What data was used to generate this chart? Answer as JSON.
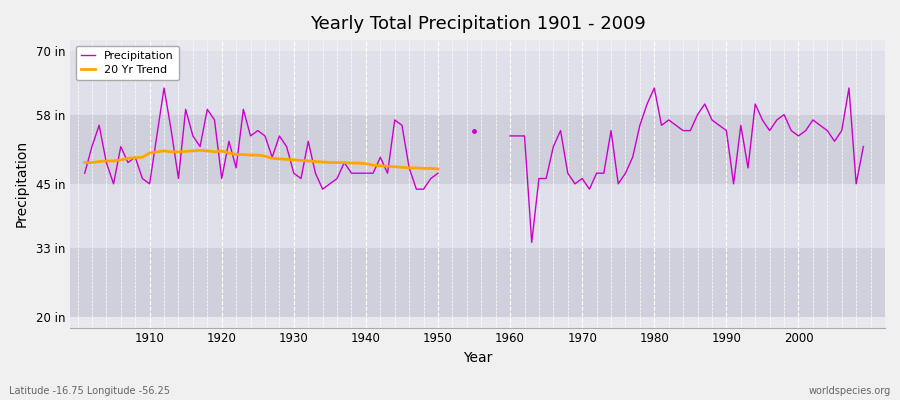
{
  "title": "Yearly Total Precipitation 1901 - 2009",
  "xlabel": "Year",
  "ylabel": "Precipitation",
  "bottom_left_label": "Latitude -16.75 Longitude -56.25",
  "bottom_right_label": "worldspecies.org",
  "legend_entries": [
    "Precipitation",
    "20 Yr Trend"
  ],
  "precip_color": "#cc00cc",
  "trend_color": "#ffa500",
  "background_color": "#f0f0f0",
  "plot_bg_color": "#e8e8ee",
  "band_color_light": "#e0e0ea",
  "band_color_dark": "#d0d0dc",
  "ytick_labels": [
    "20 in",
    "33 in",
    "45 in",
    "58 in",
    "70 in"
  ],
  "ytick_values": [
    20,
    33,
    45,
    58,
    70
  ],
  "ylim": [
    18,
    72
  ],
  "xlim": [
    1899,
    2012
  ],
  "years": [
    1901,
    1902,
    1903,
    1904,
    1905,
    1906,
    1907,
    1908,
    1909,
    1910,
    1911,
    1912,
    1913,
    1914,
    1915,
    1916,
    1917,
    1918,
    1919,
    1920,
    1921,
    1922,
    1923,
    1924,
    1925,
    1926,
    1927,
    1928,
    1929,
    1930,
    1931,
    1932,
    1933,
    1934,
    1935,
    1936,
    1937,
    1938,
    1939,
    1940,
    1941,
    1942,
    1943,
    1944,
    1945,
    1946,
    1947,
    1948,
    1949,
    1950,
    1955,
    1960,
    1961,
    1962,
    1963,
    1964,
    1965,
    1966,
    1967,
    1968,
    1969,
    1970,
    1971,
    1972,
    1973,
    1974,
    1975,
    1976,
    1977,
    1978,
    1979,
    1980,
    1981,
    1982,
    1983,
    1984,
    1985,
    1986,
    1987,
    1988,
    1989,
    1990,
    1991,
    1992,
    1993,
    1994,
    1995,
    1996,
    1997,
    1998,
    1999,
    2000,
    2001,
    2002,
    2003,
    2004,
    2005,
    2006,
    2007,
    2008,
    2009
  ],
  "precip_values": [
    47,
    52,
    56,
    49,
    45,
    52,
    49,
    50,
    46,
    45,
    54,
    63,
    55,
    46,
    59,
    54,
    52,
    59,
    57,
    46,
    53,
    48,
    59,
    54,
    55,
    54,
    50,
    54,
    52,
    47,
    46,
    53,
    47,
    44,
    45,
    46,
    49,
    47,
    47,
    47,
    47,
    50,
    47,
    57,
    56,
    48,
    44,
    44,
    46,
    47,
    55,
    54,
    54,
    54,
    34,
    46,
    46,
    52,
    55,
    47,
    45,
    46,
    44,
    47,
    47,
    55,
    45,
    47,
    50,
    56,
    60,
    63,
    56,
    57,
    56,
    55,
    55,
    58,
    60,
    57,
    56,
    55,
    45,
    56,
    48,
    60,
    57,
    55,
    57,
    58,
    55,
    54,
    55,
    57,
    56,
    55,
    53,
    55,
    63,
    45,
    52
  ],
  "trend_years": [
    1901,
    1902,
    1903,
    1904,
    1905,
    1906,
    1907,
    1908,
    1909,
    1910,
    1911,
    1912,
    1913,
    1914,
    1915,
    1916,
    1917,
    1918,
    1919,
    1920,
    1921,
    1922,
    1923,
    1924,
    1925,
    1926,
    1927,
    1928,
    1929,
    1930,
    1931,
    1932,
    1933,
    1934,
    1935,
    1936,
    1937,
    1938,
    1939,
    1940,
    1941,
    1942,
    1943,
    1944,
    1945,
    1946,
    1947,
    1948,
    1949,
    1950
  ],
  "trend_values": [
    49.0,
    49.0,
    49.2,
    49.3,
    49.3,
    49.5,
    49.8,
    49.9,
    50.0,
    50.8,
    51.0,
    51.2,
    51.0,
    51.0,
    51.1,
    51.2,
    51.3,
    51.2,
    51.0,
    51.2,
    50.8,
    50.5,
    50.5,
    50.4,
    50.4,
    50.2,
    49.8,
    49.7,
    49.6,
    49.5,
    49.4,
    49.3,
    49.2,
    49.1,
    49.0,
    49.0,
    49.0,
    48.9,
    48.9,
    48.8,
    48.5,
    48.4,
    48.3,
    48.2,
    48.1,
    48.0,
    48.0,
    47.9,
    47.9,
    47.8
  ],
  "grid_color": "#ffffff",
  "line_width": 1.0,
  "marker_size": 2.5,
  "xticks": [
    1910,
    1920,
    1930,
    1940,
    1950,
    1960,
    1970,
    1980,
    1990,
    2000
  ]
}
